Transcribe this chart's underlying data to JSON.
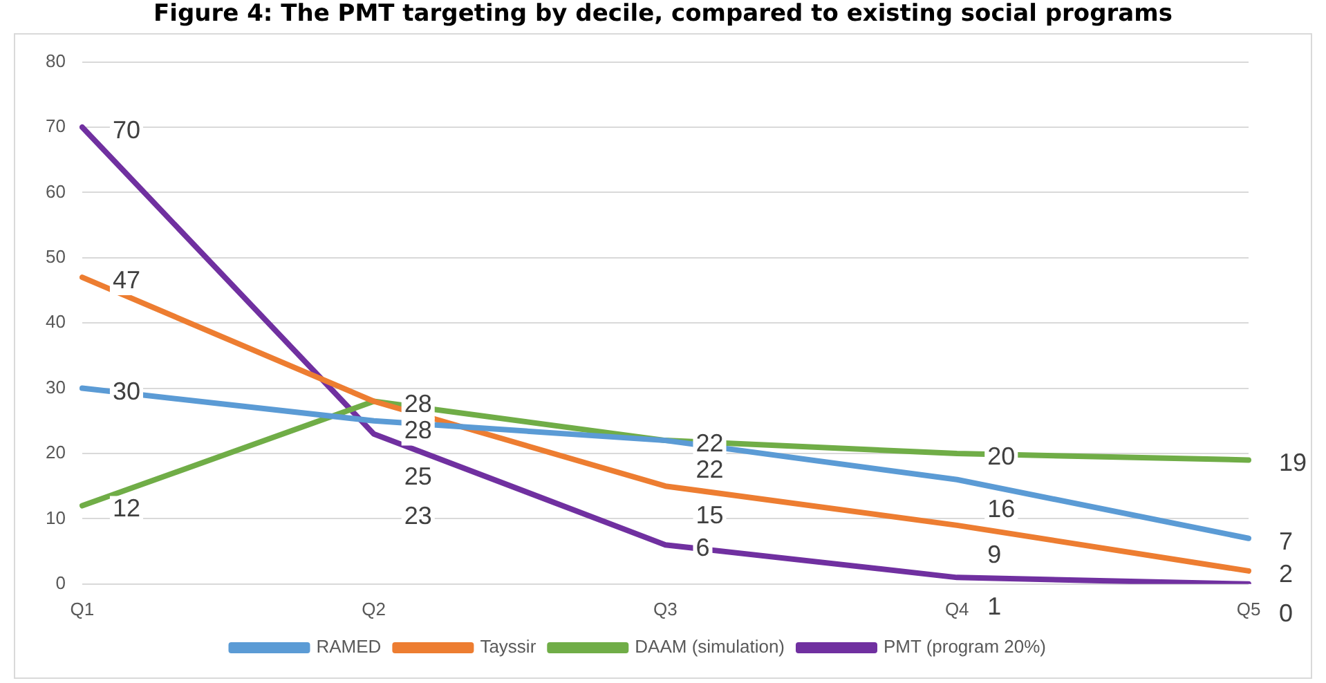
{
  "chart_data": {
    "type": "line",
    "title": "Figure 4: The PMT targeting by decile, compared to existing social programs",
    "categories": [
      "Q1",
      "Q2",
      "Q3",
      "Q4",
      "Q5"
    ],
    "series": [
      {
        "name": "RAMED",
        "color": "#5b9bd5",
        "values": [
          30,
          25,
          22,
          16,
          7
        ]
      },
      {
        "name": "Tayssir",
        "color": "#ed7d31",
        "values": [
          47,
          28,
          15,
          9,
          2
        ]
      },
      {
        "name": "DAAM (simulation)",
        "color": "#70ad47",
        "values": [
          12,
          28,
          22,
          20,
          19
        ]
      },
      {
        "name": "PMT (program 20%)",
        "color": "#7030a0",
        "values": [
          70,
          23,
          6,
          1,
          0
        ]
      }
    ],
    "ylim": [
      0,
      80
    ],
    "yticks": [
      0,
      10,
      20,
      30,
      40,
      50,
      60,
      70,
      80
    ],
    "grid": "y",
    "legend": "bottom",
    "marker": "none",
    "line_style": "solid",
    "data_labels": true
  }
}
